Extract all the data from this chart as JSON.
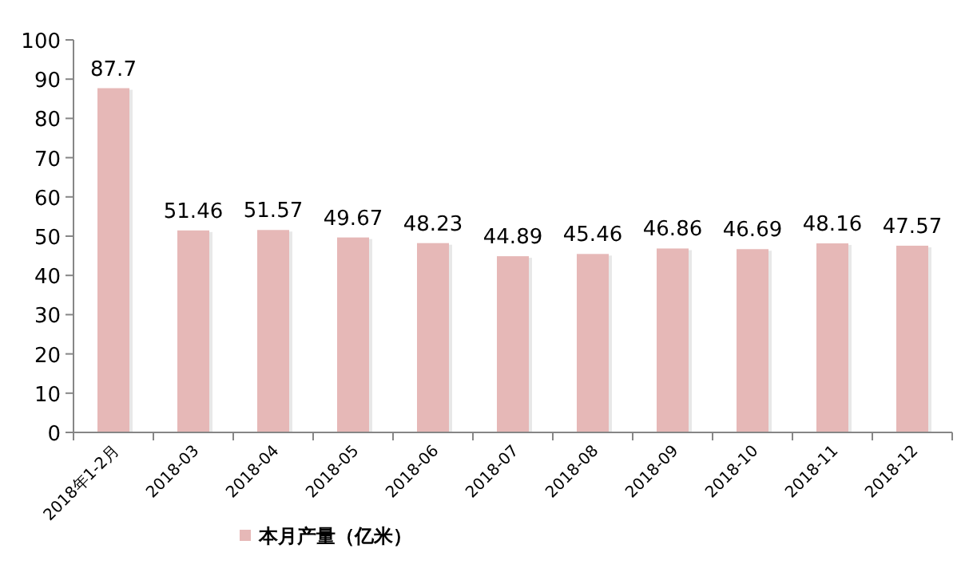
{
  "chart_data": {
    "type": "bar",
    "categories": [
      "2018年1-2月",
      "2018-03",
      "2018-04",
      "2018-05",
      "2018-06",
      "2018-07",
      "2018-08",
      "2018-09",
      "2018-10",
      "2018-11",
      "2018-12"
    ],
    "series": [
      {
        "name": "本月产量（亿米）",
        "color": "#e6b8b7",
        "values": [
          87.7,
          51.46,
          51.57,
          49.67,
          48.23,
          44.89,
          45.46,
          46.86,
          46.69,
          48.16,
          47.57
        ]
      }
    ],
    "ylim": [
      0,
      100
    ],
    "yticks": [
      0,
      10,
      20,
      30,
      40,
      50,
      60,
      70,
      80,
      90,
      100
    ],
    "data_labels": true,
    "grid": false,
    "legend": "bottom"
  }
}
